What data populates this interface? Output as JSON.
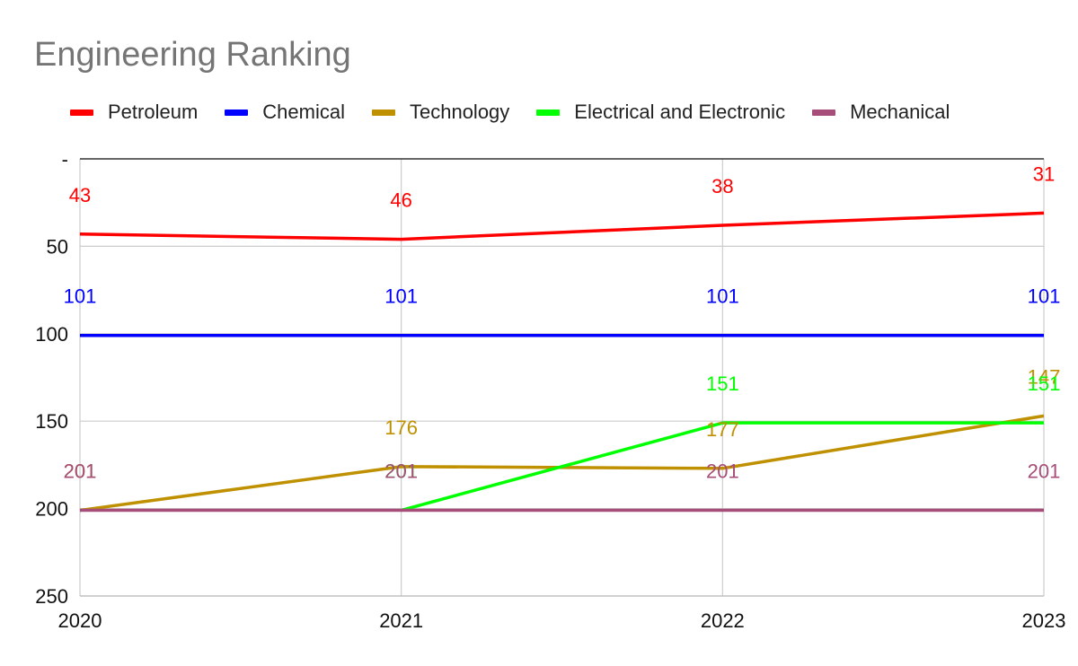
{
  "chart_data": {
    "type": "line",
    "title": "Engineering Ranking",
    "xlabel": "",
    "ylabel": "",
    "categories": [
      "2020",
      "2021",
      "2022",
      "2023"
    ],
    "ylim": [
      0,
      250
    ],
    "y_reversed": true,
    "y_ticks": [
      {
        "value": 0,
        "label": "-"
      },
      {
        "value": 50,
        "label": "50"
      },
      {
        "value": 100,
        "label": "100"
      },
      {
        "value": 150,
        "label": "150"
      },
      {
        "value": 200,
        "label": "200"
      },
      {
        "value": 250,
        "label": "250"
      }
    ],
    "grid": true,
    "legend": "top",
    "series": [
      {
        "name": "Petroleum",
        "color": "#ff0000",
        "values": [
          43,
          46,
          38,
          31
        ]
      },
      {
        "name": "Chemical",
        "color": "#0000ff",
        "values": [
          101,
          101,
          101,
          101
        ]
      },
      {
        "name": "Technology",
        "color": "#bf9000",
        "values": [
          201,
          176,
          177,
          147
        ]
      },
      {
        "name": "Electrical and Electronic",
        "color": "#00ff00",
        "values": [
          null,
          201,
          151,
          151
        ]
      },
      {
        "name": "Mechanical",
        "color": "#a64d79",
        "values": [
          201,
          201,
          201,
          201
        ]
      }
    ]
  }
}
